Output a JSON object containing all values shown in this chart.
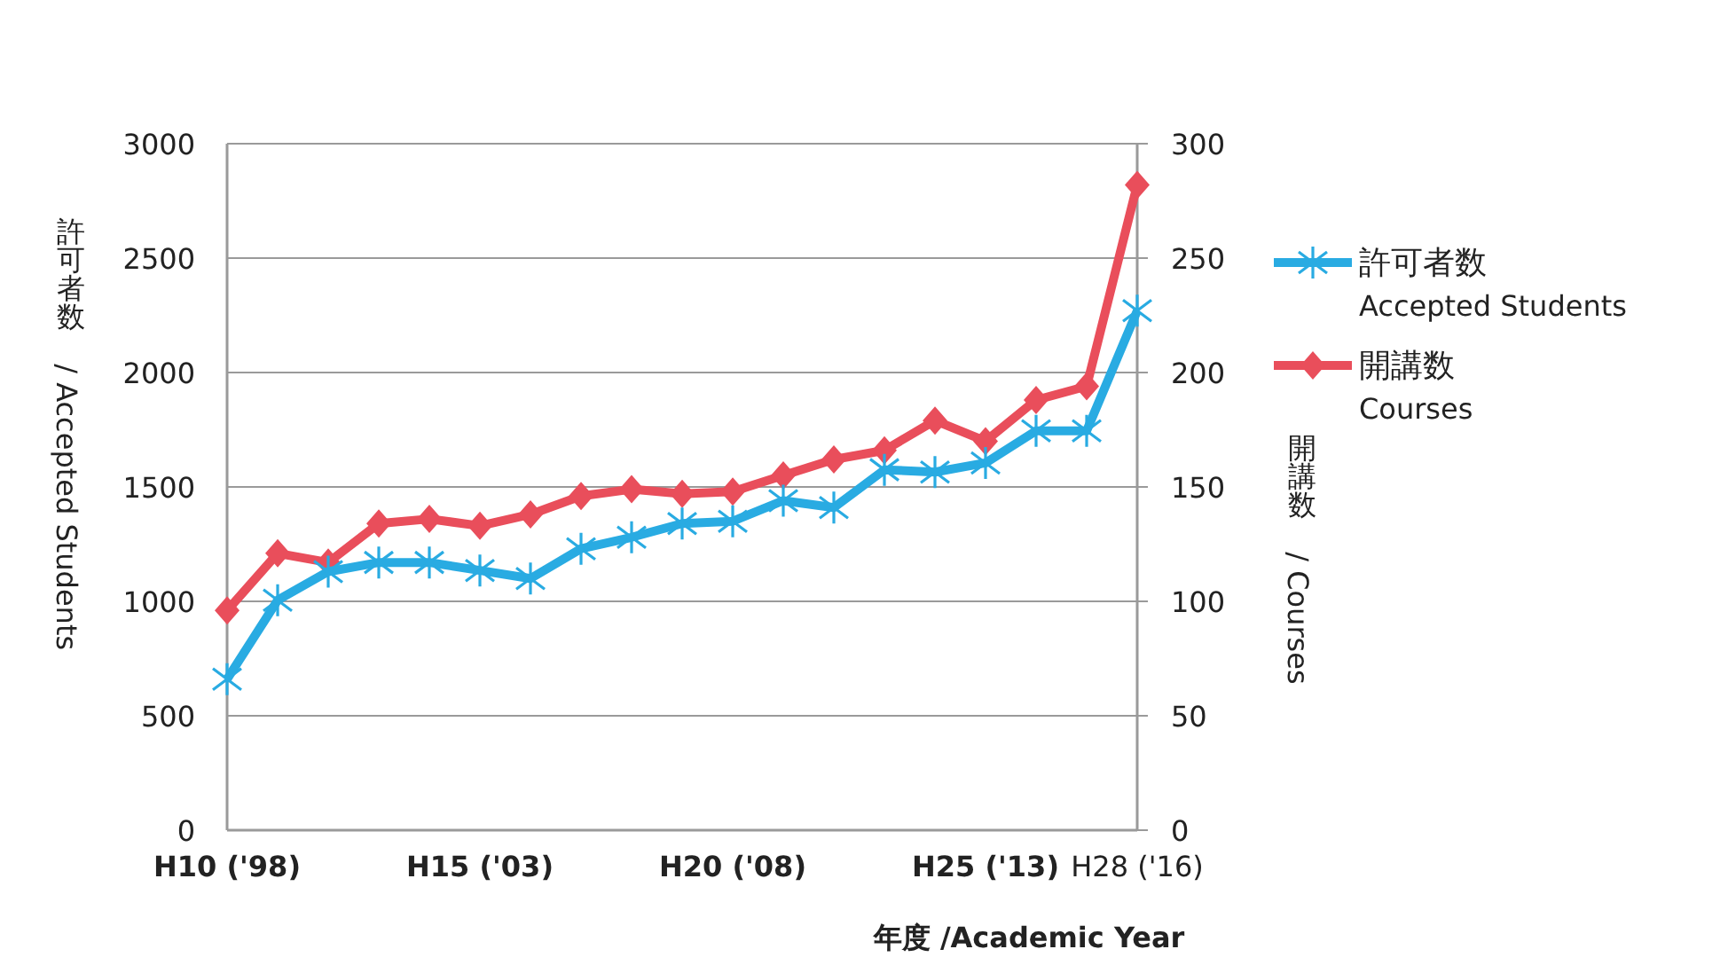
{
  "chart_data": {
    "type": "line",
    "categories": [
      "H10 ('98)",
      null,
      null,
      null,
      null,
      "H15 ('03)",
      null,
      null,
      null,
      null,
      "H20 ('08)",
      null,
      null,
      null,
      null,
      "H25 ('13)",
      null,
      null,
      "H28 ('16)"
    ],
    "series": [
      {
        "name": "許可者数\nAccepted Students",
        "color": "#29abe2",
        "marker": "cross",
        "values": [
          660,
          1005,
          1130,
          1170,
          1170,
          1135,
          1100,
          1230,
          1280,
          1340,
          1350,
          1440,
          1410,
          1575,
          1565,
          1605,
          1745,
          1745,
          2270
        ]
      },
      {
        "name": "開講数\nCourses",
        "color": "#e94e5b",
        "marker": "diamond",
        "axis": "y2",
        "values": [
          96,
          121,
          117,
          134,
          136,
          133,
          138,
          146,
          149,
          147,
          148,
          155,
          162,
          166,
          179,
          170,
          188,
          194,
          282
        ]
      }
    ],
    "ylim": [
      0,
      3000
    ],
    "yticks": [
      0,
      500,
      1000,
      1500,
      2000,
      2500,
      3000
    ],
    "y2lim": [
      0,
      300
    ],
    "y2ticks": [
      0,
      50,
      100,
      150,
      200,
      250,
      300
    ],
    "ylabel": "許可者数 / Accepted Students",
    "y2label": "開講数 / Courses",
    "xlabel": "年度 /Academic Year",
    "grid": "y",
    "legend": "right",
    "line_style": "solid"
  }
}
